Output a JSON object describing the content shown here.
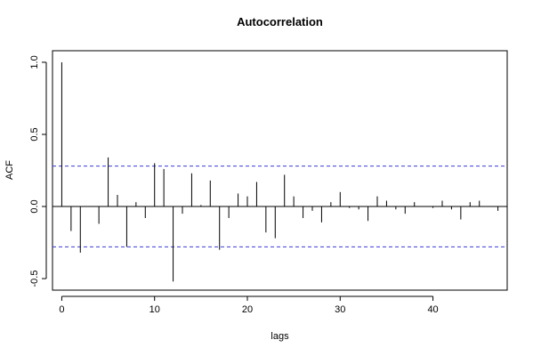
{
  "chart_data": {
    "type": "bar",
    "title": "Autocorrelation",
    "xlabel": "lags",
    "ylabel": "ACF",
    "xlim": [
      -1,
      48
    ],
    "ylim": [
      -0.58,
      1.08
    ],
    "x_ticks": [
      0,
      10,
      20,
      30,
      40
    ],
    "y_ticks": [
      -0.5,
      0.0,
      0.5,
      1.0
    ],
    "y_tick_labels": [
      "-0.5",
      "0.0",
      "0.5",
      "1.0"
    ],
    "confidence_bounds": [
      0.28,
      -0.28
    ],
    "confidence_color": "#3b3bd9",
    "grid": false,
    "lags": [
      0,
      1,
      2,
      3,
      4,
      5,
      6,
      7,
      8,
      9,
      10,
      11,
      12,
      13,
      14,
      15,
      16,
      17,
      18,
      19,
      20,
      21,
      22,
      23,
      24,
      25,
      26,
      27,
      28,
      29,
      30,
      31,
      32,
      33,
      34,
      35,
      36,
      37,
      38,
      39,
      40,
      41,
      42,
      43,
      44,
      45,
      46,
      47
    ],
    "values": [
      1.0,
      -0.17,
      -0.32,
      0.0,
      -0.12,
      0.34,
      0.08,
      -0.28,
      0.03,
      -0.08,
      0.3,
      0.26,
      -0.52,
      -0.05,
      0.23,
      0.01,
      0.18,
      -0.3,
      -0.08,
      0.09,
      0.07,
      0.17,
      -0.18,
      -0.22,
      0.22,
      0.07,
      -0.08,
      -0.03,
      -0.11,
      0.03,
      0.1,
      -0.01,
      -0.02,
      -0.1,
      0.07,
      0.04,
      -0.02,
      -0.05,
      0.03,
      0.0,
      -0.01,
      0.04,
      -0.02,
      -0.09,
      0.03,
      0.04,
      0.0,
      -0.03
    ]
  }
}
